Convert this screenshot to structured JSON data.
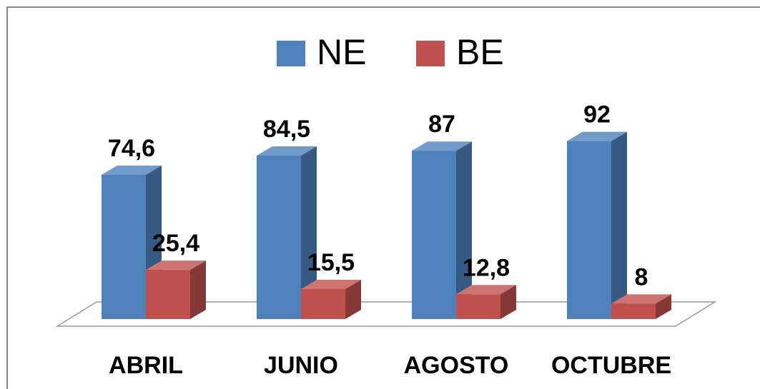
{
  "chart_data": {
    "type": "bar3d",
    "categories": [
      "ABRIL",
      "JUNIO",
      "AGOSTO",
      "OCTUBRE"
    ],
    "series": [
      {
        "name": "NE",
        "color": "#4f81bd",
        "values": [
          74.6,
          84.5,
          87,
          92
        ],
        "value_labels": [
          "74,6",
          "84,5",
          "87",
          "92"
        ]
      },
      {
        "name": "BE",
        "color": "#c0504d",
        "values": [
          25.4,
          15.5,
          12.8,
          8
        ],
        "value_labels": [
          "25,4",
          "15,5",
          "12,8",
          "8"
        ]
      }
    ],
    "legend": "top"
  }
}
